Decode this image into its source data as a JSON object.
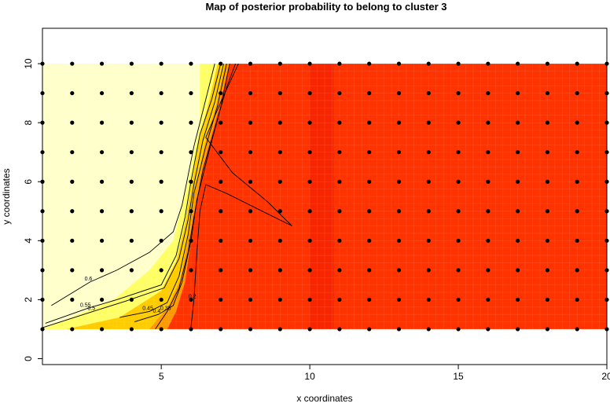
{
  "chart_data": {
    "type": "heatmap",
    "title": "Map of posterior probability to belong to cluster  3",
    "xlabel": "x coordinates",
    "ylabel": "y coordinates",
    "xlim": [
      1,
      20
    ],
    "ylim": [
      -0.2,
      11.2
    ],
    "xticks": [
      "5",
      "10",
      "15",
      "20"
    ],
    "xtick_values": [
      5,
      10,
      15,
      20
    ],
    "yticks": [
      "0",
      "2",
      "4",
      "6",
      "8",
      "10"
    ],
    "ytick_values": [
      0,
      2,
      4,
      6,
      8,
      10
    ],
    "grid_x": [
      1,
      20
    ],
    "grid_y": [
      1,
      10
    ],
    "points": {
      "x_from": 1,
      "x_to": 20,
      "y_from": 1,
      "y_to": 10,
      "step": 1
    },
    "colors": {
      "low": "#ffffcc",
      "mid_low": "#ffff66",
      "mid": "#ffcc00",
      "mid_high": "#ff9900",
      "high": "#ff3300",
      "stripe": "#f21c00"
    },
    "regions": [
      {
        "name": "low-probability-region",
        "color": "low",
        "x_max_at_y": [
          [
            1,
            1.0
          ],
          [
            2,
            3.4
          ],
          [
            3,
            4.6
          ],
          [
            4,
            5.4
          ],
          [
            6,
            5.9
          ],
          [
            8,
            6.3
          ],
          [
            10,
            6.3
          ]
        ]
      },
      {
        "name": "transition-band",
        "color": "mid"
      },
      {
        "name": "high-probability-region",
        "color": "high"
      }
    ],
    "stripe": {
      "x_range": [
        10.0,
        10.8
      ]
    },
    "contours": [
      {
        "level": "0.6",
        "points": [
          [
            1.3,
            1.8
          ],
          [
            2.6,
            2.6
          ],
          [
            3.5,
            3.0
          ],
          [
            4.6,
            3.6
          ],
          [
            5.4,
            4.3
          ],
          [
            5.7,
            5.2
          ],
          [
            5.9,
            6.2
          ],
          [
            6.1,
            7.2
          ],
          [
            6.4,
            8.4
          ],
          [
            6.8,
            10.0
          ]
        ]
      },
      {
        "level": "0.55",
        "points": [
          [
            1.1,
            1.2
          ],
          [
            2.5,
            1.7
          ],
          [
            3.5,
            2.0
          ],
          [
            5.0,
            2.5
          ],
          [
            5.5,
            3.5
          ],
          [
            5.8,
            4.8
          ],
          [
            6.0,
            6.0
          ],
          [
            6.3,
            7.6
          ],
          [
            6.7,
            8.8
          ],
          [
            7.0,
            10.0
          ]
        ]
      },
      {
        "level": "0.5",
        "points": [
          [
            1.0,
            1.05
          ],
          [
            2.7,
            1.6
          ],
          [
            3.8,
            1.95
          ],
          [
            5.1,
            2.4
          ],
          [
            5.6,
            3.4
          ],
          [
            5.9,
            4.7
          ],
          [
            6.1,
            5.9
          ],
          [
            6.4,
            7.4
          ],
          [
            6.8,
            8.7
          ],
          [
            7.1,
            10.0
          ]
        ]
      },
      {
        "level": "0.45",
        "points": [
          [
            3.6,
            1.4
          ],
          [
            4.6,
            1.6
          ],
          [
            5.2,
            1.9
          ],
          [
            5.6,
            2.8
          ],
          [
            5.9,
            4.2
          ],
          [
            6.1,
            5.6
          ],
          [
            6.5,
            7.2
          ],
          [
            6.9,
            8.6
          ],
          [
            7.2,
            10.0
          ]
        ]
      },
      {
        "level": "0.4",
        "points": [
          [
            4.1,
            1.25
          ],
          [
            4.9,
            1.5
          ],
          [
            5.4,
            1.8
          ],
          [
            5.7,
            2.6
          ],
          [
            6.0,
            4.0
          ],
          [
            6.2,
            5.4
          ],
          [
            6.6,
            7.0
          ],
          [
            7.0,
            8.5
          ],
          [
            7.3,
            10.0
          ]
        ]
      },
      {
        "level": "0.35",
        "points": [
          [
            4.8,
            1.0
          ],
          [
            5.2,
            1.6
          ],
          [
            5.6,
            2.4
          ],
          [
            5.9,
            3.6
          ],
          [
            6.1,
            4.8
          ],
          [
            6.4,
            6.4
          ],
          [
            6.8,
            7.8
          ],
          [
            7.2,
            9.2
          ],
          [
            7.5,
            10.0
          ]
        ]
      },
      {
        "level": "0.2",
        "points": [
          [
            6.0,
            1.05
          ],
          [
            6.1,
            2.0
          ],
          [
            6.2,
            3.6
          ],
          [
            6.3,
            5.0
          ],
          [
            6.5,
            5.9
          ],
          [
            7.2,
            5.6
          ],
          [
            8.4,
            5.0
          ],
          [
            9.4,
            4.5
          ],
          [
            8.6,
            5.3
          ],
          [
            7.4,
            6.3
          ],
          [
            6.5,
            7.5
          ],
          [
            7.0,
            8.7
          ],
          [
            7.6,
            10.0
          ]
        ]
      }
    ]
  }
}
